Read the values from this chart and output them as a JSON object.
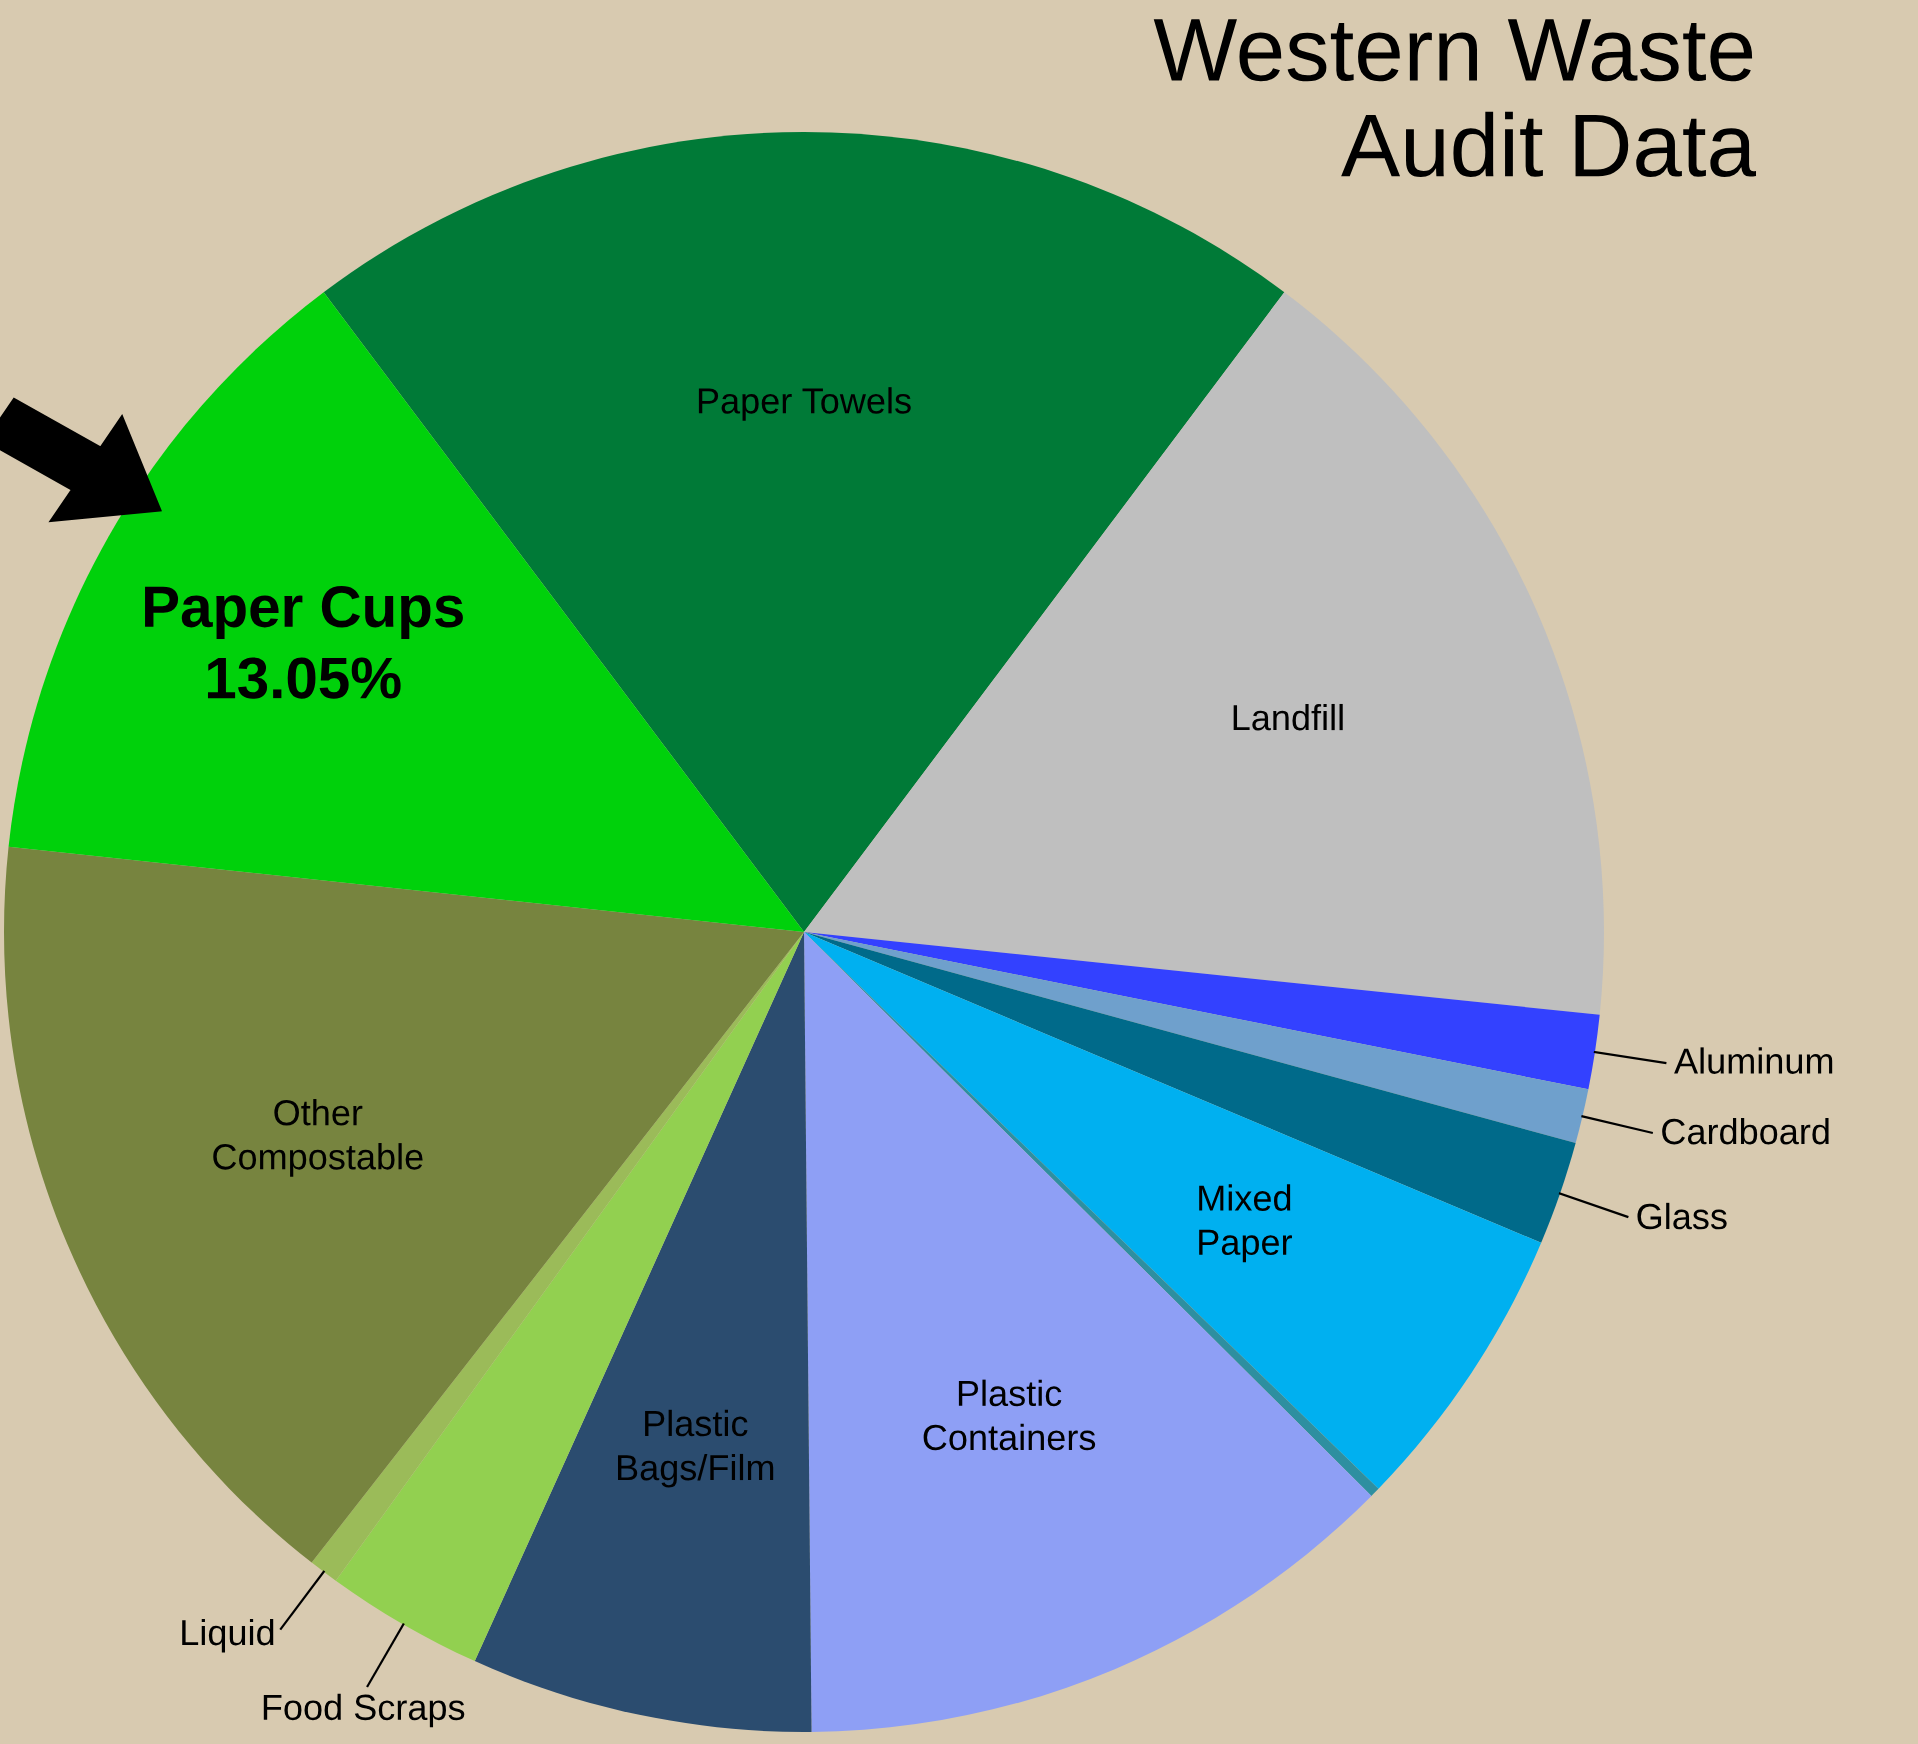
{
  "chart_data": {
    "type": "pie",
    "title": "Western Waste\nAudit Data",
    "categories": [
      "Paper Towels",
      "Landfill",
      "Aluminum",
      "Cardboard",
      "Glass",
      "Mixed\nPaper",
      null,
      "Plastic\nContainers",
      "Plastic\nBags/Film",
      "Food Scraps",
      "Liquid",
      "Other\nCompostable",
      "Paper Cups"
    ],
    "values": [
      20.5,
      16.4,
      1.5,
      1.1,
      2.1,
      5.9,
      0.2,
      12.4,
      6.9,
      3.2,
      0.6,
      16.15,
      13.05
    ],
    "colors": [
      "#007a37",
      "#bfbfbf",
      "#3341ff",
      "#6fa0cc",
      "#006a8a",
      "#00b0f0",
      "#2e8fa0",
      "#8e9ff5",
      "#2b4c6f",
      "#92d050",
      "#9bbb59",
      "#77843f",
      "#00d10b"
    ],
    "value_labels": [
      null,
      null,
      null,
      null,
      null,
      null,
      null,
      null,
      null,
      null,
      null,
      null,
      "13.05%"
    ]
  }
}
